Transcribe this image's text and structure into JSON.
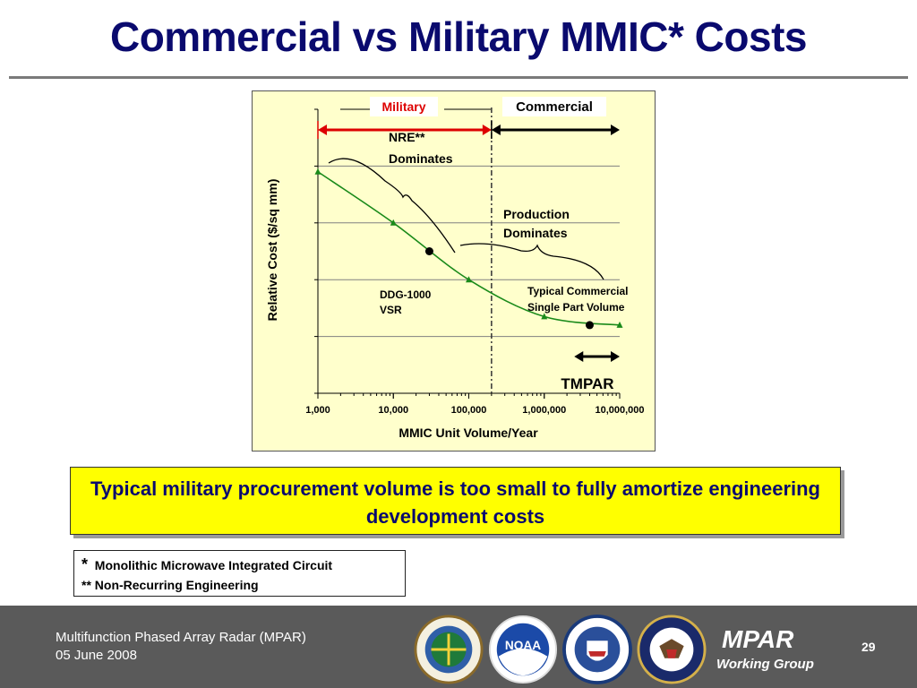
{
  "slide": {
    "title": "Commercial vs Military MMIC* Costs",
    "callout": "Typical military procurement volume is too small to fully amortize engineering development costs",
    "footnote_star": "*",
    "footnote_line1": "Monolithic Microwave Integrated Circuit",
    "footnote_line2": "** Non-Recurring Engineering"
  },
  "chart_data": {
    "type": "line",
    "xscale": "log",
    "xlim": [
      1000,
      10000000
    ],
    "xticks": [
      "1,000",
      "10,000",
      "100,000",
      "1,000,000",
      "10,000,000"
    ],
    "xlabel": "MMIC Unit Volume/Year",
    "ylabel": "Relative Cost ($/sq mm)",
    "ylim": [
      0,
      5
    ],
    "series": [
      {
        "color": "#1a8a1a",
        "points": [
          {
            "x": 1000,
            "y": 3.9
          },
          {
            "x": 10000,
            "y": 3.0
          },
          {
            "x": 100000,
            "y": 2.0
          },
          {
            "x": 1000000,
            "y": 1.35
          },
          {
            "x": 10000000,
            "y": 1.2
          }
        ]
      }
    ],
    "markers": [
      {
        "label": "DDG-1000 VSR",
        "x": 30000,
        "y": 2.5
      },
      {
        "label": "Typical Commercial Single Part Volume",
        "x": 4000000,
        "y": 1.2
      }
    ],
    "regions": [
      {
        "label": "Military",
        "from": 1000,
        "to": 200000,
        "color": "#dd0000"
      },
      {
        "label": "Commercial",
        "from": 200000,
        "to": 10000000,
        "color": "#000000"
      }
    ],
    "divider_x": 200000,
    "annotations": [
      {
        "label_line1": "NRE**",
        "label_line2": "Dominates"
      },
      {
        "label_line1": "Production",
        "label_line2": "Dominates"
      }
    ],
    "tmpar": {
      "label": "TMPAR",
      "from": 2500000,
      "to": 10000000
    }
  },
  "footer": {
    "title": "Multifunction Phased Array Radar (MPAR)",
    "date": "05 June 2008",
    "brand": "MPAR",
    "brand_sub": "Working Group",
    "page": "29",
    "seals": [
      "faa-seal",
      "noaa-seal",
      "dhs-seal",
      "dod-seal"
    ],
    "noaa_text": "NOAA"
  },
  "colors": {
    "title": "#0a0a6e",
    "panel": "#ffffcc",
    "callout": "#ffff00",
    "footer": "#5a5a5a",
    "military": "#dd0000",
    "curve": "#1a8a1a"
  }
}
